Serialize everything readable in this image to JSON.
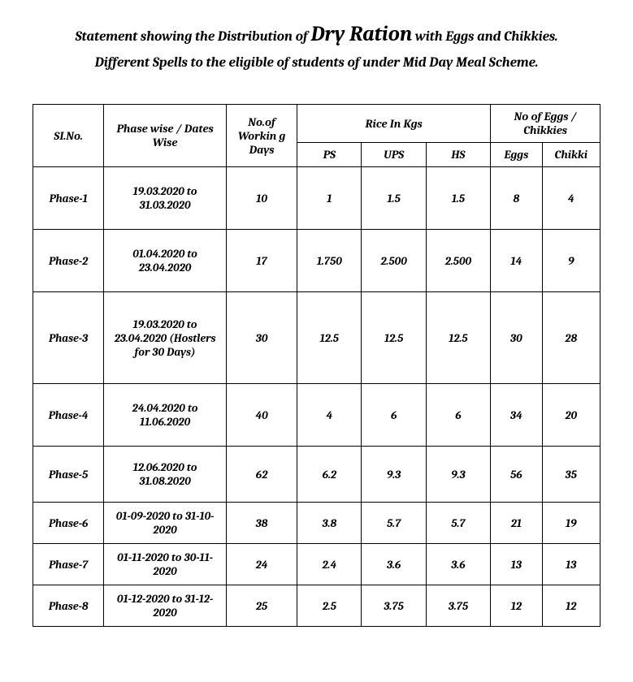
{
  "title": {
    "prefix": "Statement showing the Distribution of ",
    "big": "Dry Ration",
    "suffix": " with Eggs and Chikkies. Different Spells to the eligible of students of under Mid Day Meal Scheme."
  },
  "headers": {
    "slno": "SI.No.",
    "phase": "Phase wise / Dates Wise",
    "working": "No.of Workin g Days",
    "rice": "Rice In Kgs",
    "eggs_chikkies": "No of Eggs / Chikkies",
    "ps": "PS",
    "ups": "UPS",
    "hs": "HS",
    "eggs": "Eggs",
    "chikki": "Chikki"
  },
  "rows": [
    {
      "sl": "Phase-1",
      "phase": "19.03.2020 to 31.03.2020",
      "wd": "10",
      "ps": "1",
      "ups": "1.5",
      "hs": "1.5",
      "eggs": "8",
      "chikki": "4"
    },
    {
      "sl": "Phase-2",
      "phase": "01.04.2020 to 23.04.2020",
      "wd": "17",
      "ps": "1.750",
      "ups": "2.500",
      "hs": "2.500",
      "eggs": "14",
      "chikki": "9"
    },
    {
      "sl": "Phase-3",
      "phase": "19.03.2020 to 23.04.2020 (Hostlers  for 30 Days)",
      "wd": "30",
      "ps": "12.5",
      "ups": "12.5",
      "hs": "12.5",
      "eggs": "30",
      "chikki": "28"
    },
    {
      "sl": "Phase-4",
      "phase": "24.04.2020 to 11.06.2020",
      "wd": "40",
      "ps": "4",
      "ups": "6",
      "hs": "6",
      "eggs": "34",
      "chikki": "20"
    },
    {
      "sl": "Phase-5",
      "phase": "12.06.2020 to 31.08.2020",
      "wd": "62",
      "ps": "6.2",
      "ups": "9.3",
      "hs": "9.3",
      "eggs": "56",
      "chikki": "35"
    },
    {
      "sl": "Phase-6",
      "phase": "01-09-2020 to 31-10-2020",
      "wd": "38",
      "ps": "3.8",
      "ups": "5.7",
      "hs": "5.7",
      "eggs": "21",
      "chikki": "19"
    },
    {
      "sl": "Phase-7",
      "phase": "01-11-2020 to 30-11-2020",
      "wd": "24",
      "ps": "2.4",
      "ups": "3.6",
      "hs": "3.6",
      "eggs": "13",
      "chikki": "13"
    },
    {
      "sl": "Phase-8",
      "phase": "01-12-2020 to 31-12-2020",
      "wd": "25",
      "ps": "2.5",
      "ups": "3.75",
      "hs": "3.75",
      "eggs": "12",
      "chikki": "12"
    }
  ],
  "row_heights": [
    "row-tall",
    "row-tall",
    "row-xtall",
    "row-tall",
    "row-med",
    "row-short",
    "row-short",
    "row-short"
  ],
  "style": {
    "background_color": "#ffffff",
    "text_color": "#000000",
    "border_color": "#000000",
    "title_fontsize": 17,
    "title_big_fontsize": 26,
    "cell_fontsize": 14,
    "header_fontsize": 14.5,
    "font_family": "Cambria, 'Times New Roman', serif",
    "col_widths_pct": {
      "sl": 11,
      "phase": 19,
      "wd": 11,
      "ps": 10,
      "ups": 10,
      "hs": 10,
      "eggs": 8,
      "chikki": 9
    }
  }
}
